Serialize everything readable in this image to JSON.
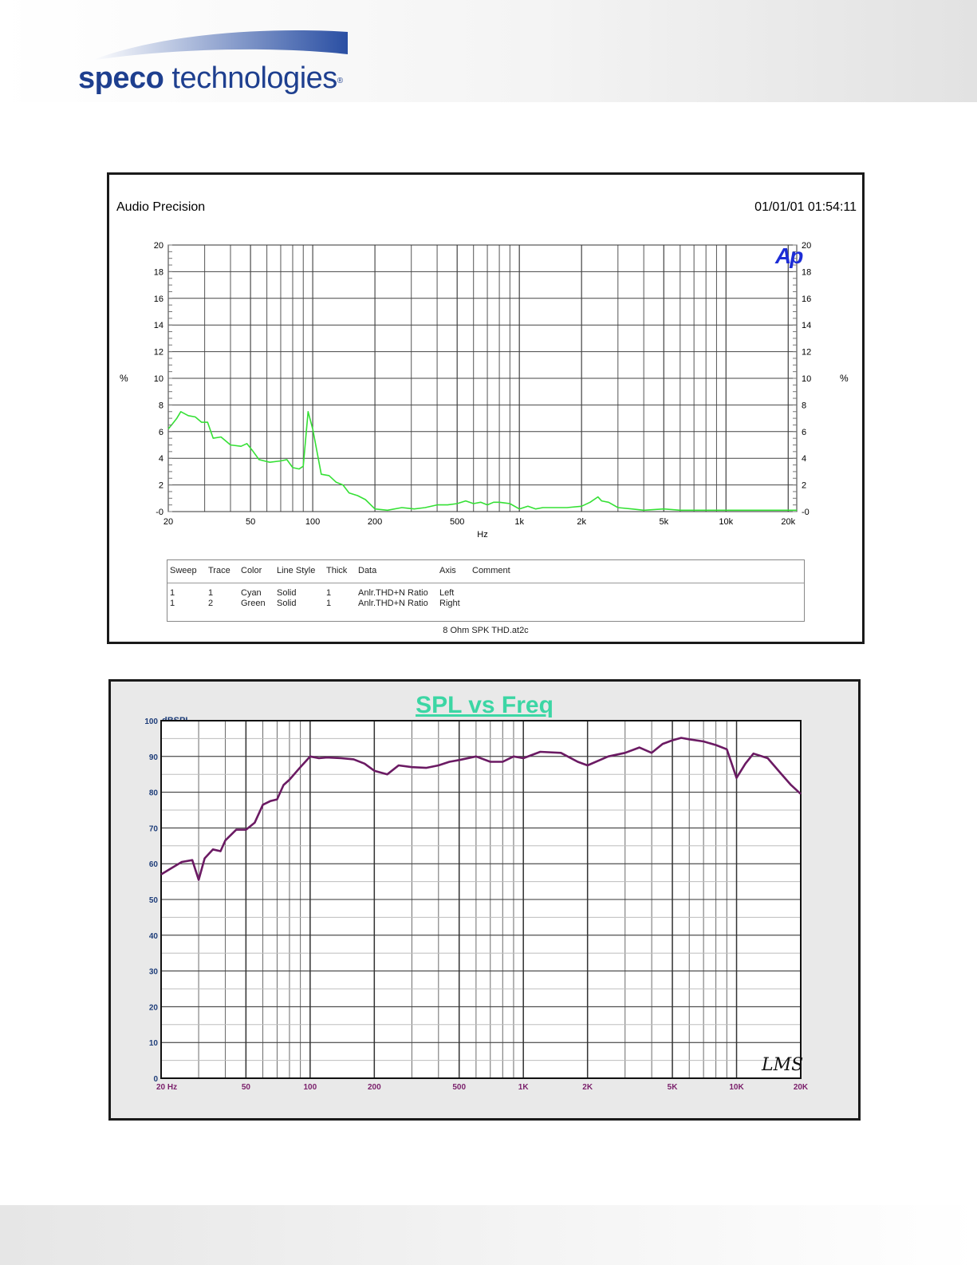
{
  "brand": {
    "name_bold": "speco",
    "name_rest": " technologies",
    "registered": "®",
    "color": "#1e3f8f"
  },
  "chart_data": [
    {
      "type": "line",
      "title": "Audio Precision",
      "timestamp": "01/01/01 01:54:11",
      "xlabel": "Hz",
      "ylabel_left": "%",
      "ylabel_right": "%",
      "x_scale": "log",
      "xlim": [
        20,
        22000
      ],
      "ylim": [
        0,
        20
      ],
      "xticks": [
        20,
        50,
        100,
        200,
        500,
        1000,
        2000,
        5000,
        10000,
        20000
      ],
      "xtick_labels": [
        "20",
        "50",
        "100",
        "200",
        "500",
        "1k",
        "2k",
        "5k",
        "10k",
        "20k"
      ],
      "yticks": [
        0,
        2,
        4,
        6,
        8,
        10,
        12,
        14,
        16,
        18,
        20
      ],
      "ytick_labels_left": [
        "-0",
        "2",
        "4",
        "6",
        "8",
        "10",
        "12",
        "14",
        "16",
        "18",
        "20"
      ],
      "ytick_labels_right": [
        "-0",
        "2",
        "4",
        "6",
        "8",
        "10",
        "12",
        "14",
        "16",
        "18",
        "20"
      ],
      "grid": true,
      "badge": "Ap",
      "badge_color": "#1d2dd6",
      "series": [
        {
          "color": "#35e035",
          "x": [
            20,
            21,
            22,
            23,
            25,
            27,
            29,
            31,
            33,
            36,
            40,
            45,
            48,
            51,
            55,
            62,
            70,
            75,
            80,
            86,
            90,
            95,
            100,
            110,
            120,
            130,
            140,
            150,
            165,
            180,
            200,
            230,
            270,
            310,
            350,
            400,
            450,
            500,
            550,
            600,
            650,
            700,
            750,
            800,
            900,
            1000,
            1100,
            1200,
            1300,
            1400,
            1500,
            1700,
            2000,
            2200,
            2400,
            2500,
            2700,
            3000,
            3500,
            4000,
            5000,
            6000,
            7000,
            8000,
            9000,
            10000,
            12000,
            15000,
            18000,
            20000,
            22000
          ],
          "y": [
            6.2,
            6.6,
            7.0,
            7.5,
            7.2,
            7.1,
            6.7,
            6.7,
            5.5,
            5.6,
            5.0,
            4.9,
            5.1,
            4.6,
            3.9,
            3.7,
            3.8,
            3.9,
            3.3,
            3.2,
            3.4,
            7.5,
            6.2,
            2.8,
            2.7,
            2.2,
            2.0,
            1.4,
            1.2,
            0.9,
            0.2,
            0.1,
            0.3,
            0.2,
            0.3,
            0.5,
            0.5,
            0.6,
            0.8,
            0.6,
            0.7,
            0.5,
            0.7,
            0.7,
            0.6,
            0.2,
            0.4,
            0.2,
            0.3,
            0.3,
            0.3,
            0.3,
            0.4,
            0.7,
            1.1,
            0.8,
            0.7,
            0.3,
            0.2,
            0.1,
            0.2,
            0.1,
            0.1,
            0.1,
            0.1,
            0.1,
            0.1,
            0.1,
            0.1,
            0.1,
            0.1
          ]
        }
      ],
      "legend_table": {
        "columns": [
          "Sweep",
          "Trace",
          "Color",
          "Line Style",
          "Thick",
          "Data",
          "Axis",
          "Comment"
        ],
        "rows": [
          [
            "1",
            "1",
            "Cyan",
            "Solid",
            "1",
            "Anlr.THD+N Ratio",
            "Left",
            ""
          ],
          [
            "1",
            "2",
            "Green",
            "Solid",
            "1",
            "Anlr.THD+N Ratio",
            "Right",
            ""
          ]
        ]
      },
      "file_name": "8 Ohm SPK THD.at2c"
    },
    {
      "type": "line",
      "title": "SPL vs Freq",
      "title_color": "#3cd6a4",
      "ylabel": "dBSPL",
      "x_scale": "log",
      "xlim": [
        20,
        20000
      ],
      "ylim": [
        0,
        100
      ],
      "xticks": [
        20,
        50,
        100,
        200,
        500,
        1000,
        2000,
        5000,
        10000,
        20000
      ],
      "xtick_labels": [
        "20  Hz",
        "50",
        "100",
        "200",
        "500",
        "1K",
        "2K",
        "5K",
        "10K",
        "20K"
      ],
      "yticks": [
        0,
        10,
        20,
        30,
        40,
        50,
        60,
        70,
        80,
        90,
        100
      ],
      "ytick_labels": [
        "0",
        "10",
        "20",
        "30",
        "40",
        "50",
        "60",
        "70",
        "80",
        "90",
        "100"
      ],
      "grid": true,
      "watermark": "LMS",
      "series": [
        {
          "color": "#6b1a63",
          "x": [
            20,
            22,
            25,
            28,
            30,
            32,
            35,
            38,
            40,
            45,
            50,
            55,
            60,
            65,
            70,
            75,
            80,
            90,
            100,
            110,
            120,
            140,
            160,
            180,
            200,
            230,
            260,
            300,
            350,
            400,
            450,
            500,
            600,
            700,
            800,
            900,
            1000,
            1200,
            1500,
            1800,
            2000,
            2500,
            3000,
            3500,
            4000,
            4500,
            5000,
            5500,
            6000,
            7000,
            8000,
            9000,
            10000,
            11000,
            12000,
            14000,
            16000,
            18000,
            20000
          ],
          "y": [
            57,
            58.5,
            60.5,
            61,
            55.5,
            61.5,
            64,
            63.5,
            66.5,
            69.5,
            69.5,
            71.5,
            76.5,
            77.5,
            78,
            82,
            83.5,
            87,
            90,
            89.5,
            89.7,
            89.5,
            89.2,
            88,
            86,
            85,
            87.5,
            87,
            86.8,
            87.5,
            88.5,
            89,
            90,
            88.5,
            88.5,
            90,
            89.5,
            91.3,
            91,
            88.5,
            87.5,
            90,
            91,
            92.5,
            91,
            93.5,
            94.5,
            95.2,
            94.8,
            94.2,
            93.2,
            92,
            84,
            88,
            90.8,
            89.5,
            85.5,
            82,
            79.5
          ]
        }
      ]
    }
  ]
}
